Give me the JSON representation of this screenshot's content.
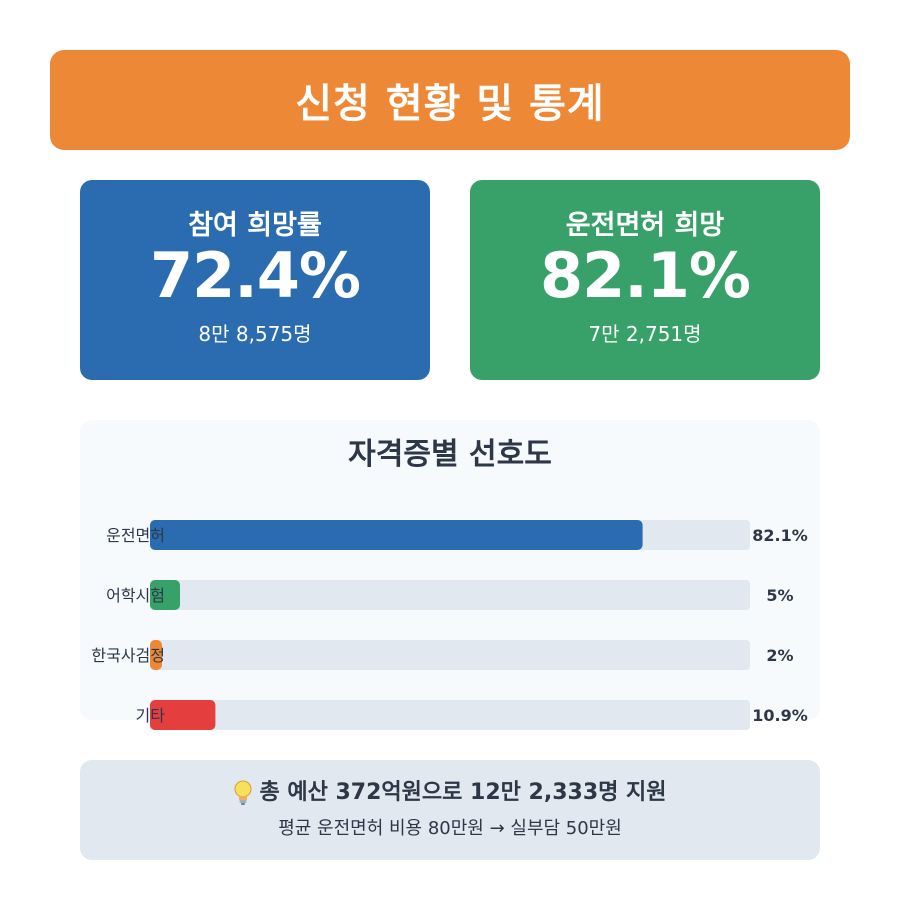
{
  "header": {
    "title": "신청 현황 및 통계"
  },
  "cards": [
    {
      "label": "참여 희망률",
      "value": "72.4%",
      "sub": "8만 8,575명",
      "color": "#2b6cb0"
    },
    {
      "label": "운전면허 희망",
      "value": "82.1%",
      "sub": "7만 2,751명",
      "color": "#38a169"
    }
  ],
  "chart_data": {
    "type": "bar",
    "orientation": "horizontal",
    "title": "자격증별 선호도",
    "categories": [
      "운전면허",
      "어학시험",
      "한국사검정",
      "기타"
    ],
    "values": [
      82.1,
      5,
      2,
      10.9
    ],
    "value_labels": [
      "82.1%",
      "5%",
      "2%",
      "10.9%"
    ],
    "colors": [
      "#2b6cb0",
      "#38a169",
      "#ed8936",
      "#e53e3e"
    ],
    "track_color": "#e2e8f0",
    "xlim": [
      0,
      100
    ],
    "grid": false,
    "legend": "none"
  },
  "summary": {
    "icon": "lightbulb-icon",
    "line1": "총 예산 372억원으로 12만 2,333명 지원",
    "line2": "평균 운전면허 비용 80만원 → 실부담 50만원"
  }
}
